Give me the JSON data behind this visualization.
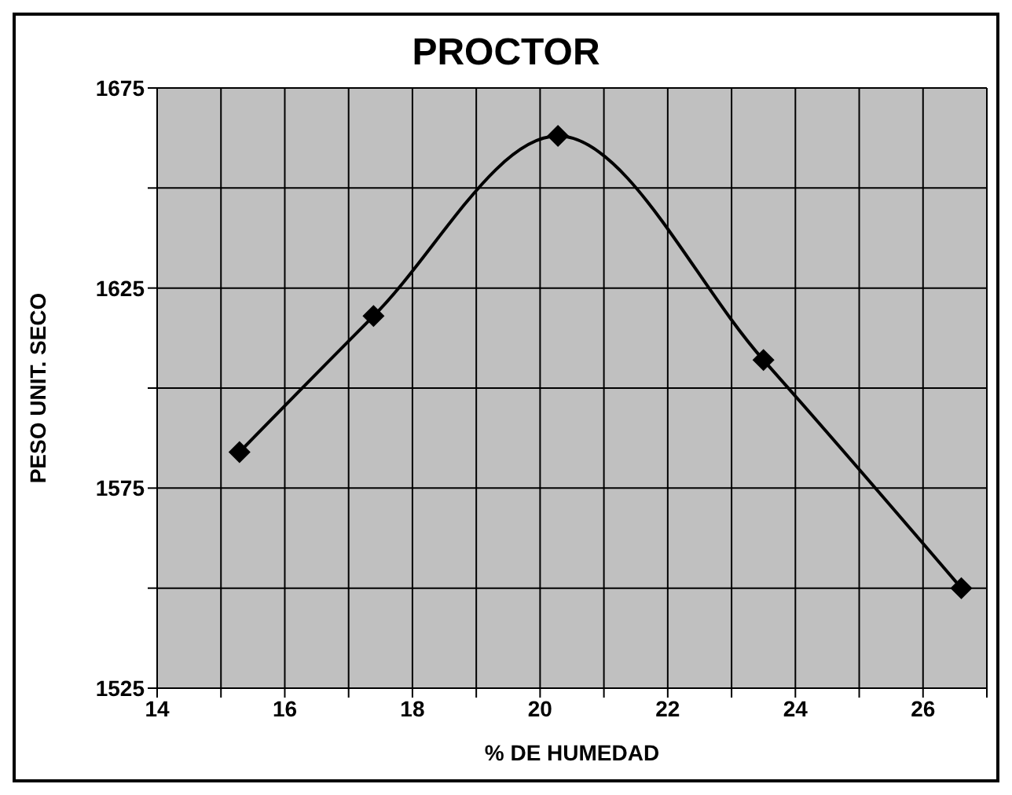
{
  "chart_data": {
    "type": "line",
    "title": "PROCTOR",
    "xlabel": "% DE HUMEDAD",
    "ylabel": "PESO UNIT. SECO",
    "x": [
      15.29,
      17.39,
      20.28,
      23.5,
      26.6
    ],
    "series": [
      {
        "color": "#000000",
        "values": [
          1584,
          1618,
          1663,
          1607,
          1550
        ]
      }
    ],
    "xlim": [
      14,
      27
    ],
    "xticks": [
      14,
      {
        "value": 15,
        "label": null
      },
      16,
      {
        "value": 17,
        "label": null
      },
      18,
      {
        "value": 19,
        "label": null
      },
      20,
      {
        "value": 21,
        "label": null
      },
      22,
      {
        "value": 23,
        "label": null
      },
      24,
      {
        "value": 25,
        "label": null
      },
      26,
      {
        "value": 27,
        "label": null
      }
    ],
    "ylim": [
      1525,
      1675
    ],
    "yticks": [
      1525,
      {
        "value": 1550,
        "label": null
      },
      1575,
      {
        "value": 1600,
        "label": null
      },
      1625,
      {
        "value": 1650,
        "label": null
      },
      1675
    ],
    "grid": true,
    "marker": "diamond",
    "line_style": "solid"
  }
}
